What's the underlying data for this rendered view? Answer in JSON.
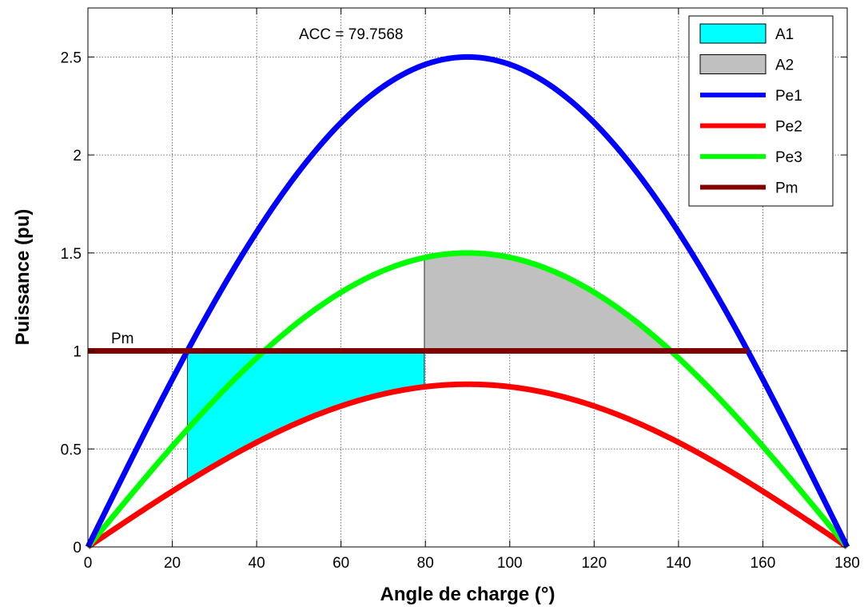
{
  "chart_data": {
    "type": "line",
    "xlabel": "Angle de charge (°)",
    "ylabel": "Puissance (pu)",
    "xlim": [
      0,
      180
    ],
    "ylim": [
      0,
      2.75
    ],
    "xticks": [
      0,
      20,
      40,
      60,
      80,
      100,
      120,
      140,
      160,
      180
    ],
    "yticks": [
      0,
      0.5,
      1,
      1.5,
      2,
      2.5
    ],
    "xtick_labels": [
      "0",
      "20",
      "40",
      "60",
      "80",
      "100",
      "120",
      "140",
      "160",
      "180"
    ],
    "ytick_labels": [
      "0",
      "0.5",
      "1",
      "1.5",
      "2",
      "2.5"
    ],
    "grid": true,
    "legend_position": "top-right",
    "annotations": {
      "acc_text": "ACC = 79.7568",
      "pm_text": "Pm"
    },
    "series": [
      {
        "name": "Pe1",
        "kind": "sine",
        "amplitude": 2.5,
        "x_range": [
          0,
          180
        ],
        "color": "#0000ff"
      },
      {
        "name": "Pe2",
        "kind": "sine",
        "amplitude": 0.83,
        "x_range": [
          0,
          180
        ],
        "color": "#ff0000"
      },
      {
        "name": "Pe3",
        "kind": "sine",
        "amplitude": 1.5,
        "x_range": [
          0,
          180
        ],
        "color": "#00ff00"
      },
      {
        "name": "Pm",
        "kind": "constant",
        "value": 1,
        "x_range": [
          0,
          156.4
        ],
        "color": "#800000"
      }
    ],
    "areas": [
      {
        "name": "A1",
        "x_range": [
          23.6,
          79.76
        ],
        "upper": "Pm",
        "lower": "Pe2",
        "color": "#00ffff"
      },
      {
        "name": "A2",
        "x_range": [
          79.76,
          138.2
        ],
        "upper": "Pe3",
        "lower": "Pm",
        "color": "#c0c0c0"
      }
    ],
    "legend": [
      {
        "label": "A1",
        "kind": "patch",
        "color": "#00ffff"
      },
      {
        "label": "A2",
        "kind": "patch",
        "color": "#c0c0c0"
      },
      {
        "label": "Pe1",
        "kind": "line",
        "color": "#0000ff"
      },
      {
        "label": "Pe2",
        "kind": "line",
        "color": "#ff0000"
      },
      {
        "label": "Pe3",
        "kind": "line",
        "color": "#00ff00"
      },
      {
        "label": "Pm",
        "kind": "line",
        "color": "#800000"
      }
    ]
  }
}
